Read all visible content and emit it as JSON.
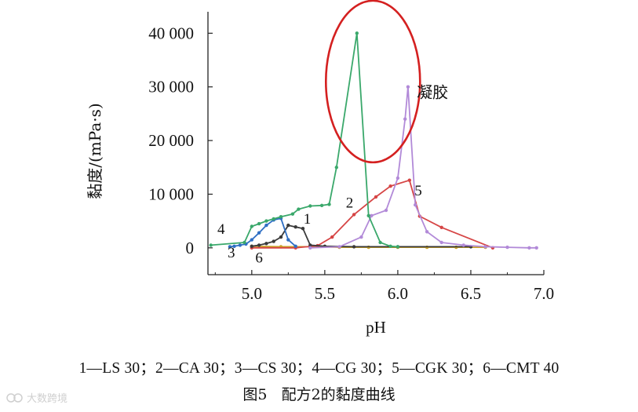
{
  "colors": {
    "LS": "#3a3a3a",
    "CA": "#d64545",
    "CS": "#2f6fc4",
    "CG": "#3aa86b",
    "CGK": "#b28ad8",
    "CMT": "#c9a227",
    "gel_ellipse": "#d42020",
    "axis": "#222222"
  },
  "chart_data": {
    "type": "line",
    "xlabel": "pH",
    "ylabel": "黏度/(mPa·s)",
    "xlim": [
      4.7,
      7.0
    ],
    "ylim": [
      -5000,
      44000
    ],
    "xticks": [
      5.0,
      5.5,
      6.0,
      6.5,
      7.0
    ],
    "xtick_labels": [
      "5.0",
      "5.5",
      "6.0",
      "6.5",
      "7.0"
    ],
    "yticks": [
      0,
      10000,
      20000,
      30000,
      40000
    ],
    "ytick_labels": [
      "0",
      "10 000",
      "20 000",
      "30 000",
      "40 000"
    ],
    "series": [
      {
        "id": "1",
        "name": "LS 30",
        "color": "LS",
        "label_at": [
          5.38,
          4500
        ],
        "x": [
          5.0,
          5.05,
          5.1,
          5.15,
          5.2,
          5.25,
          5.3,
          5.35,
          5.4,
          5.5,
          5.7,
          6.0,
          6.5
        ],
        "y": [
          300,
          500,
          800,
          1200,
          2000,
          4200,
          3900,
          3600,
          500,
          300,
          200,
          200,
          200
        ]
      },
      {
        "id": "2",
        "name": "CA 30",
        "color": "CA",
        "label_at": [
          5.67,
          7500
        ],
        "x": [
          5.0,
          5.3,
          5.45,
          5.55,
          5.7,
          5.85,
          5.95,
          6.08,
          6.15,
          6.3,
          6.65
        ],
        "y": [
          0,
          0,
          400,
          2000,
          6200,
          9500,
          11500,
          12600,
          5900,
          3800,
          0
        ]
      },
      {
        "id": "3",
        "name": "CS 30",
        "color": "CS",
        "label_at": [
          4.86,
          -1800
        ],
        "x": [
          4.85,
          4.88,
          4.92,
          4.96,
          5.0,
          5.05,
          5.1,
          5.15,
          5.2,
          5.25,
          5.3
        ],
        "y": [
          200,
          300,
          500,
          700,
          1500,
          2800,
          4200,
          5200,
          5500,
          1500,
          300
        ]
      },
      {
        "id": "4",
        "name": "CG 30",
        "color": "CG",
        "label_at": [
          4.79,
          2600
        ],
        "x": [
          4.72,
          4.95,
          5.0,
          5.05,
          5.1,
          5.15,
          5.2,
          5.28,
          5.32,
          5.4,
          5.48,
          5.53,
          5.58,
          5.72,
          5.8,
          5.88,
          5.95,
          6.0
        ],
        "y": [
          500,
          1000,
          4000,
          4500,
          5000,
          5400,
          5800,
          6300,
          7200,
          7800,
          7900,
          8100,
          15000,
          40000,
          6000,
          1000,
          300,
          200
        ]
      },
      {
        "id": "5",
        "name": "CGK 30",
        "color": "CGK",
        "label_at": [
          6.14,
          9800
        ],
        "x": [
          5.4,
          5.6,
          5.75,
          5.82,
          5.92,
          6.0,
          6.05,
          6.07,
          6.12,
          6.2,
          6.3,
          6.45,
          6.6,
          6.75,
          6.9,
          6.95
        ],
        "y": [
          0,
          200,
          2000,
          6000,
          7000,
          13000,
          24000,
          30000,
          8000,
          3000,
          1000,
          500,
          200,
          100,
          0,
          0
        ]
      },
      {
        "id": "6",
        "name": "CMT 40",
        "color": "CMT",
        "label_at": [
          5.05,
          -2700
        ],
        "x": [
          5.0,
          5.2,
          5.4,
          5.6,
          5.8,
          6.0,
          6.2,
          6.4,
          6.6
        ],
        "y": [
          300,
          200,
          200,
          100,
          100,
          100,
          100,
          100,
          100
        ]
      }
    ],
    "annotations": [
      {
        "text": "凝胶",
        "at": [
          6.13,
          28000
        ]
      }
    ]
  },
  "legend_text": "1—LS 30；2—CA 30；3—CS 30；4—CG 30；5—CGK 30；6—CMT 40",
  "caption": {
    "figure_number": "图5",
    "title": "配方2的黏度曲线"
  },
  "watermark": "大数跨境"
}
